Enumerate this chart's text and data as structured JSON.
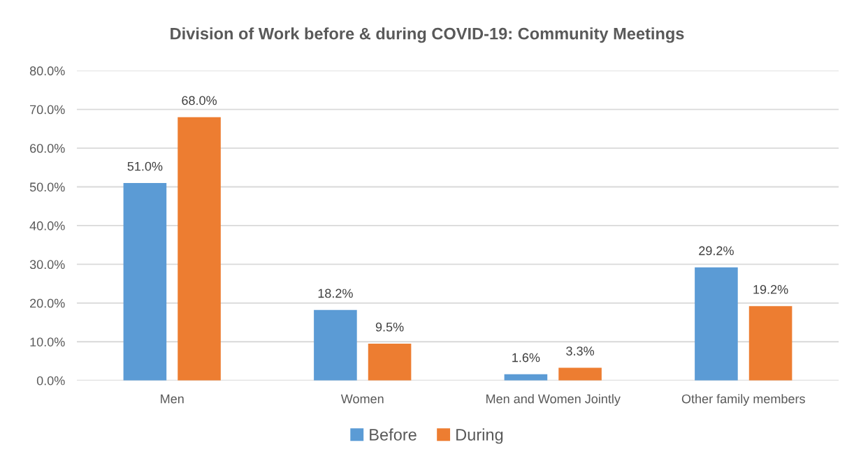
{
  "chart_data": {
    "type": "bar",
    "title": "Division of Work before & during COVID-19: Community Meetings",
    "categories": [
      "Men",
      "Women",
      "Men and Women Jointly",
      "Other family members"
    ],
    "series": [
      {
        "name": "Before",
        "color": "#5b9bd5",
        "values": [
          51.0,
          18.2,
          1.6,
          29.2
        ],
        "value_labels": [
          "51.0%",
          "18.2%",
          "1.6%",
          "29.2%"
        ]
      },
      {
        "name": "During",
        "color": "#ed7d31",
        "values": [
          68.0,
          9.5,
          3.3,
          19.2
        ],
        "value_labels": [
          "68.0%",
          "9.5%",
          "3.3%",
          "19.2%"
        ]
      }
    ],
    "ylim": [
      0,
      80
    ],
    "yticks": [
      {
        "value": 0,
        "label": "0.0%"
      },
      {
        "value": 10,
        "label": "10.0%"
      },
      {
        "value": 20,
        "label": "20.0%"
      },
      {
        "value": 30,
        "label": "30.0%"
      },
      {
        "value": 40,
        "label": "40.0%"
      },
      {
        "value": 50,
        "label": "50.0%"
      },
      {
        "value": 60,
        "label": "60.0%"
      },
      {
        "value": 70,
        "label": "70.0%"
      },
      {
        "value": 80,
        "label": "80.0%"
      }
    ],
    "grid": "y",
    "legend": "bottom"
  }
}
